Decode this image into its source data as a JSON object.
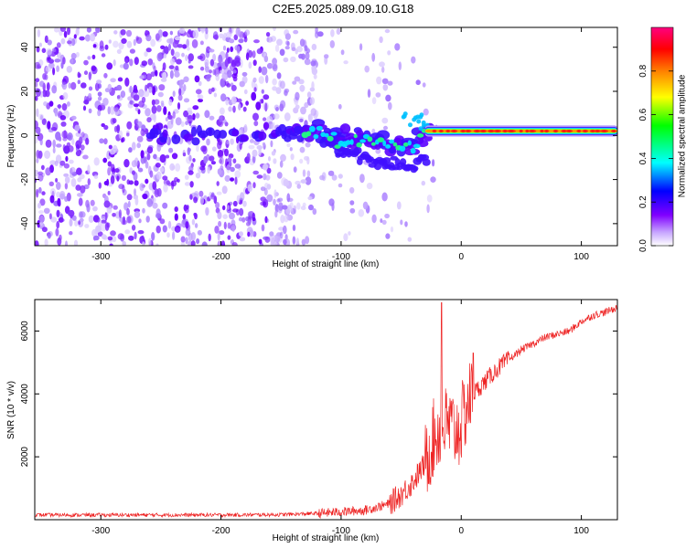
{
  "title": "C2E5.2025.089.09.10.G18",
  "chart_data": [
    {
      "type": "heatmap",
      "xlabel": "Height of straight line (km)",
      "ylabel": "Frequency (Hz)",
      "xlim": [
        -355,
        130
      ],
      "ylim": [
        -50,
        49
      ],
      "xticks": [
        -300,
        -200,
        -100,
        0,
        100
      ],
      "yticks": [
        -40,
        -20,
        0,
        20,
        40
      ],
      "colorbar": {
        "label": "Normalized spectral amplitude",
        "range": [
          0,
          1
        ],
        "ticks": [
          0.0,
          0.2,
          0.4,
          0.6,
          0.8
        ],
        "colors": [
          "#ffffff",
          "#8000ff",
          "#0000ff",
          "#00ffff",
          "#00ff00",
          "#ffff00",
          "#ff8000",
          "#ff0000",
          "#ff0080"
        ]
      },
      "signal_trace": [
        {
          "x": -250,
          "f": 0
        },
        {
          "x": -200,
          "f": 1
        },
        {
          "x": -170,
          "f": 0
        },
        {
          "x": -140,
          "f": 1
        },
        {
          "x": -120,
          "f": 2
        },
        {
          "x": -100,
          "f": -2
        },
        {
          "x": -80,
          "f": -3
        },
        {
          "x": -60,
          "f": -5
        },
        {
          "x": -40,
          "f": -4
        },
        {
          "x": -30,
          "f": 2
        },
        {
          "x": 0,
          "f": 2
        },
        {
          "x": 50,
          "f": 2
        },
        {
          "x": 90,
          "f": 3
        },
        {
          "x": 130,
          "f": 2
        }
      ]
    },
    {
      "type": "line",
      "xlabel": "Height of straight line (km)",
      "ylabel": "SNR (10 * v/v)",
      "xlim": [
        -355,
        130
      ],
      "ylim": [
        0,
        7000
      ],
      "xticks": [
        -300,
        -200,
        -100,
        0,
        100
      ],
      "yticks": [
        2000,
        4000,
        6000
      ],
      "series": [
        {
          "color": "#ee2222",
          "x": [
            -355,
            -300,
            -250,
            -200,
            -150,
            -120,
            -100,
            -80,
            -60,
            -50,
            -40,
            -30,
            -25,
            -20,
            -15,
            -10,
            -5,
            0,
            5,
            10,
            20,
            30,
            40,
            50,
            60,
            70,
            80,
            90,
            100,
            110,
            120,
            130
          ],
          "y": [
            150,
            150,
            150,
            150,
            160,
            200,
            250,
            300,
            500,
            800,
            1200,
            1800,
            2400,
            2800,
            3000,
            3000,
            2800,
            3000,
            3700,
            4000,
            4400,
            4800,
            5100,
            5400,
            5600,
            5800,
            5900,
            6000,
            6300,
            6500,
            6600,
            6750
          ]
        }
      ]
    }
  ]
}
